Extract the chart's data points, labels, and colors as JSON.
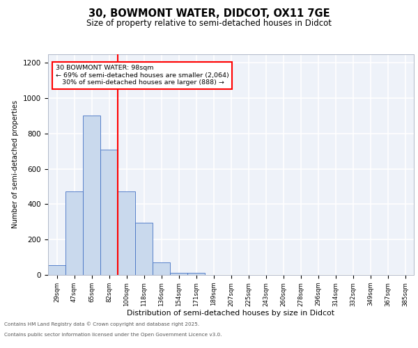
{
  "title_line1": "30, BOWMONT WATER, DIDCOT, OX11 7GE",
  "title_line2": "Size of property relative to semi-detached houses in Didcot",
  "xlabel": "Distribution of semi-detached houses by size in Didcot",
  "ylabel": "Number of semi-detached properties",
  "categories": [
    "29sqm",
    "47sqm",
    "65sqm",
    "82sqm",
    "100sqm",
    "118sqm",
    "136sqm",
    "154sqm",
    "171sqm",
    "189sqm",
    "207sqm",
    "225sqm",
    "243sqm",
    "260sqm",
    "278sqm",
    "296sqm",
    "314sqm",
    "332sqm",
    "349sqm",
    "367sqm",
    "385sqm"
  ],
  "values": [
    57,
    472,
    900,
    710,
    472,
    295,
    70,
    13,
    10,
    0,
    0,
    0,
    0,
    0,
    0,
    0,
    0,
    0,
    0,
    0,
    0
  ],
  "bar_color": "#c9d9ed",
  "bar_edge_color": "#4472c4",
  "property_bin_index": 4,
  "red_line_label": "30 BOWMONT WATER: 98sqm",
  "smaller_pct": 69,
  "smaller_count": 2064,
  "larger_pct": 30,
  "larger_count": 888,
  "ylim": [
    0,
    1250
  ],
  "yticks": [
    0,
    200,
    400,
    600,
    800,
    1000,
    1200
  ],
  "background_color": "#eef2f9",
  "grid_color": "#ffffff",
  "footer_line1": "Contains HM Land Registry data © Crown copyright and database right 2025.",
  "footer_line2": "Contains public sector information licensed under the Open Government Licence v3.0."
}
